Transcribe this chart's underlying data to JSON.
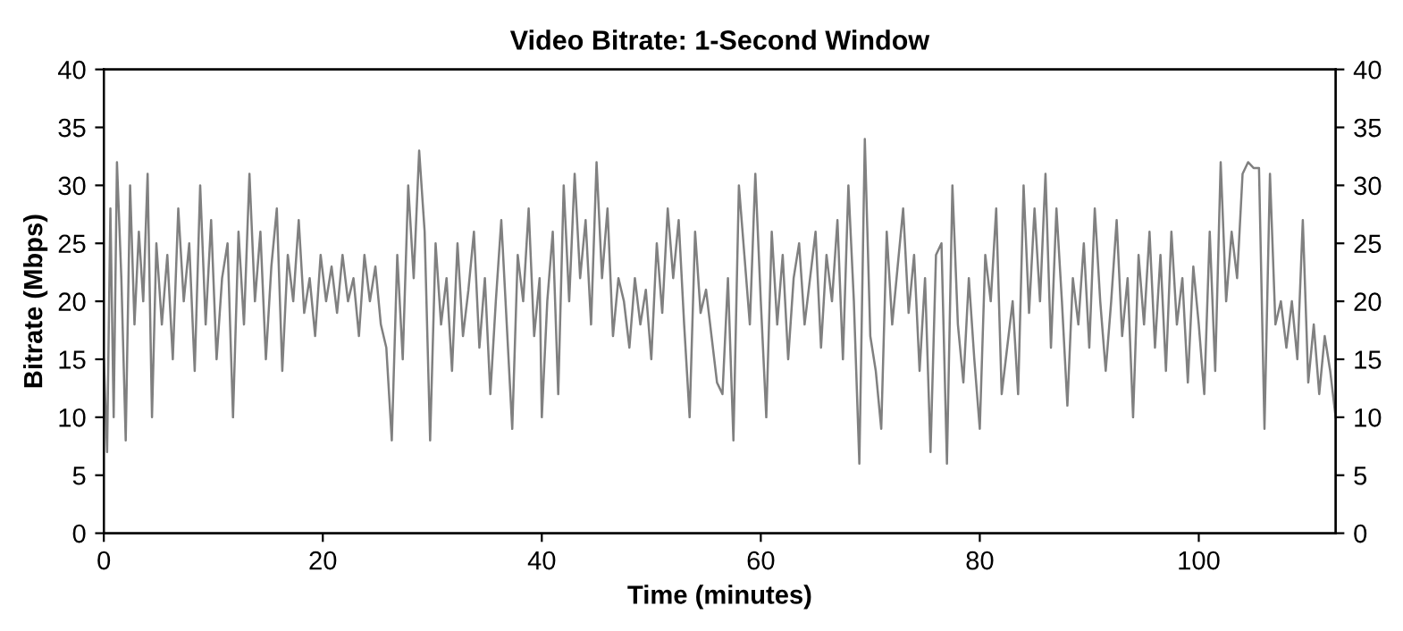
{
  "chart_data": {
    "type": "line",
    "title": "Video Bitrate: 1-Second Window",
    "xlabel": "Time (minutes)",
    "ylabel": "Bitrate (Mbps)",
    "xlim": [
      0,
      112.5
    ],
    "xticks": [
      0,
      20,
      40,
      60,
      80,
      100
    ],
    "ylim": [
      0,
      40
    ],
    "yticks": [
      0,
      5,
      10,
      15,
      20,
      25,
      30,
      35,
      40
    ],
    "y2lim": [
      0,
      40
    ],
    "y2ticks": [
      0,
      5,
      10,
      15,
      20,
      25,
      30,
      35,
      40
    ],
    "grid": false,
    "series": [
      {
        "color": "#808080",
        "x": [
          0,
          0.3,
          0.6,
          0.9,
          1.2,
          1.6,
          2,
          2.4,
          2.8,
          3.2,
          3.6,
          4,
          4.4,
          4.8,
          5.3,
          5.8,
          6.3,
          6.8,
          7.3,
          7.8,
          8.3,
          8.8,
          9.3,
          9.8,
          10.3,
          10.8,
          11.3,
          11.8,
          12.3,
          12.8,
          13.3,
          13.8,
          14.3,
          14.8,
          15.3,
          15.8,
          16.3,
          16.8,
          17.3,
          17.8,
          18.3,
          18.8,
          19.3,
          19.8,
          20.3,
          20.8,
          21.3,
          21.8,
          22.3,
          22.8,
          23.3,
          23.8,
          24.3,
          24.8,
          25.3,
          25.8,
          26.3,
          26.8,
          27.3,
          27.8,
          28.3,
          28.8,
          29.3,
          29.8,
          30.3,
          30.8,
          31.3,
          31.8,
          32.3,
          32.8,
          33.3,
          33.8,
          34.3,
          34.8,
          35.3,
          35.8,
          36.3,
          36.8,
          37.3,
          37.8,
          38.3,
          38.8,
          39.3,
          39.8,
          40,
          40.5,
          41,
          41.5,
          42,
          42.5,
          43,
          43.5,
          44,
          44.5,
          45,
          45.5,
          46,
          46.5,
          47,
          47.5,
          48,
          48.5,
          49,
          49.5,
          50,
          50.5,
          51,
          51.5,
          52,
          52.5,
          53,
          53.5,
          54,
          54.5,
          55,
          55.5,
          56,
          56.5,
          57,
          57.5,
          58,
          58.5,
          59,
          59.5,
          60,
          60.5,
          61,
          61.5,
          62,
          62.5,
          63,
          63.5,
          64,
          64.5,
          65,
          65.5,
          66,
          66.5,
          67,
          67.5,
          68,
          68.5,
          69,
          69.5,
          70,
          70.5,
          71,
          71.5,
          72,
          72.5,
          73,
          73.5,
          74,
          74.5,
          75,
          75.5,
          76,
          76.5,
          77,
          77.5,
          78,
          78.5,
          79,
          79.5,
          80,
          80.5,
          81,
          81.5,
          82,
          82.5,
          83,
          83.5,
          84,
          84.5,
          85,
          85.5,
          86,
          86.5,
          87,
          87.5,
          88,
          88.5,
          89,
          89.5,
          90,
          90.5,
          91,
          91.5,
          92,
          92.5,
          93,
          93.5,
          94,
          94.5,
          95,
          95.5,
          96,
          96.5,
          97,
          97.5,
          98,
          98.5,
          99,
          99.5,
          100,
          100.5,
          101,
          101.5,
          102,
          102.5,
          103,
          103.5,
          104,
          104.5,
          105,
          105.5,
          106,
          106.5,
          107,
          107.5,
          108,
          108.5,
          109,
          109.5,
          110,
          110.5,
          111,
          111.5,
          112,
          112.5
        ],
        "values": [
          15,
          7,
          28,
          10,
          32,
          22,
          8,
          30,
          18,
          26,
          20,
          31,
          10,
          25,
          18,
          24,
          15,
          28,
          20,
          25,
          14,
          30,
          18,
          27,
          15,
          22,
          25,
          10,
          26,
          18,
          31,
          20,
          26,
          15,
          23,
          28,
          14,
          24,
          20,
          27,
          19,
          22,
          17,
          24,
          20,
          23,
          19,
          24,
          20,
          22,
          17,
          24,
          20,
          23,
          18,
          16,
          8,
          24,
          15,
          30,
          22,
          33,
          26,
          8,
          25,
          18,
          22,
          14,
          25,
          17,
          21,
          26,
          16,
          22,
          12,
          20,
          27,
          18,
          9,
          24,
          20,
          28,
          17,
          22,
          10,
          20,
          26,
          12,
          30,
          20,
          31,
          22,
          27,
          18,
          32,
          22,
          28,
          17,
          22,
          20,
          16,
          22,
          18,
          21,
          15,
          25,
          19,
          28,
          22,
          27,
          18,
          10,
          26,
          19,
          21,
          17,
          13,
          12,
          22,
          8,
          30,
          24,
          18,
          31,
          20,
          10,
          26,
          18,
          24,
          15,
          22,
          25,
          18,
          22,
          26,
          16,
          24,
          20,
          27,
          15,
          30,
          20,
          6,
          34,
          17,
          14,
          9,
          26,
          18,
          23,
          28,
          19,
          24,
          14,
          22,
          7,
          24,
          25,
          6,
          30,
          18,
          13,
          22,
          15,
          9,
          24,
          20,
          28,
          12,
          16,
          20,
          12,
          30,
          19,
          28,
          20,
          31,
          16,
          28,
          20,
          11,
          22,
          18,
          25,
          16,
          28,
          20,
          14,
          20,
          27,
          17,
          22,
          10,
          24,
          18,
          26,
          16,
          24,
          14,
          26,
          18,
          22,
          13,
          23,
          18,
          12,
          26,
          14,
          32,
          20,
          26,
          22,
          31,
          32,
          31.5,
          31.5,
          9,
          31,
          18,
          20,
          16,
          20,
          15,
          27,
          13,
          18,
          12,
          17,
          14,
          10
        ]
      }
    ]
  }
}
